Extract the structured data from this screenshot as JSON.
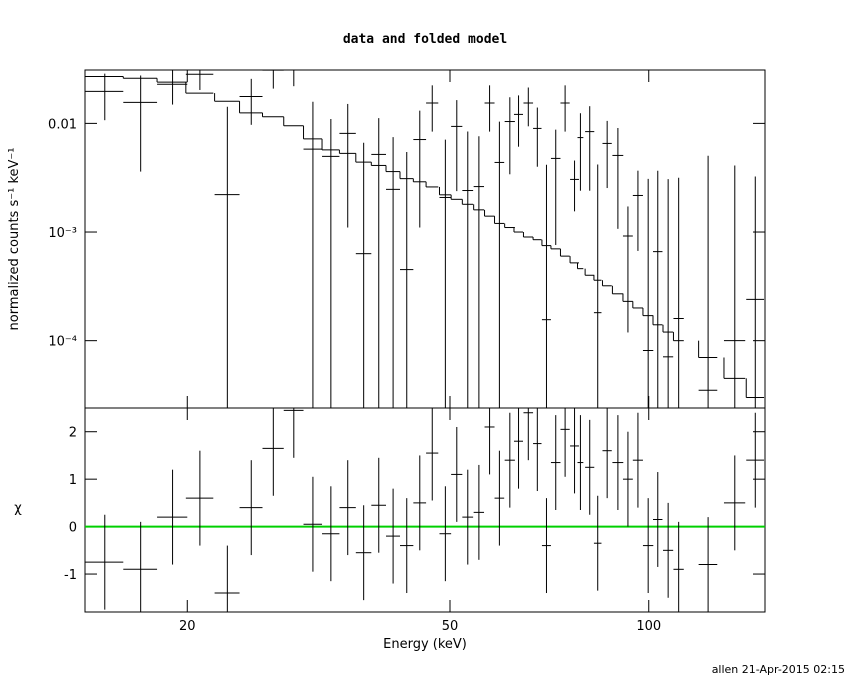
{
  "chart_data": {
    "type": "errorbar",
    "title": "data and folded model",
    "xlabel": "Energy (keV)",
    "ylabel": "normalized counts s⁻¹ keV⁻¹",
    "y2label": "χ",
    "footer": "allen 21-Apr-2015 02:15",
    "xlog": true,
    "ylog": true,
    "xlim": [
      14,
      150
    ],
    "xticks": [
      20,
      50,
      100
    ],
    "ylim": [
      2.4e-05,
      0.031
    ],
    "yticks": [
      {
        "value": 0.01,
        "label": "0.01"
      },
      {
        "value": 0.001,
        "label": "10⁻³"
      },
      {
        "value": 0.0001,
        "label": "10⁻⁴"
      }
    ],
    "y2lim": [
      -1.8,
      2.5
    ],
    "y2ticks": [
      -1,
      0,
      1,
      2
    ],
    "data_color": "#000000",
    "model_color": "#000000",
    "zero_line_color": "#00d000",
    "x": [
      15.0,
      17.0,
      19.0,
      20.9,
      23.0,
      25.0,
      27.0,
      29.0,
      31.0,
      33.0,
      35.0,
      37.0,
      39.0,
      41.0,
      43.0,
      45.0,
      47.0,
      49.2,
      51.2,
      53.2,
      55.3,
      57.4,
      59.4,
      61.6,
      63.5,
      65.7,
      67.8,
      70.0,
      72.3,
      74.7,
      77.2,
      78.8,
      81.4,
      83.7,
      86.5,
      89.8,
      93.0,
      96.3,
      99.8,
      103.2,
      107,
      111,
      123,
      135,
      145
    ],
    "xerr": [
      1.0,
      1.0,
      1.0,
      1.0,
      1.0,
      1.0,
      1.0,
      1.0,
      1.0,
      1.0,
      1.0,
      1.0,
      1.0,
      1.0,
      1.0,
      1.0,
      1.0,
      1.0,
      1.0,
      1.0,
      1.0,
      1.0,
      1.0,
      1.1,
      1.0,
      1.1,
      1.0,
      1.1,
      1.2,
      1.2,
      1.2,
      0.8,
      1.3,
      1.1,
      1.4,
      1.7,
      1.6,
      1.7,
      1.8,
      1.7,
      1.9,
      2.0,
      4,
      5,
      4.5
    ],
    "values": [
      0.0197,
      0.0156,
      0.0229,
      0.0283,
      0.00221,
      0.0177,
      0.0309,
      0.031,
      0.0058,
      0.00497,
      0.0081,
      0.000632,
      0.00518,
      0.00247,
      0.000451,
      0.0071,
      0.0154,
      0.00208,
      0.00938,
      0.00241,
      0.00262,
      0.0154,
      0.00437,
      0.0104,
      0.0121,
      0.0154,
      0.00899,
      0.000156,
      0.00476,
      0.0154,
      0.00305,
      0.0074,
      0.0084,
      0.000181,
      0.00654,
      0.00507,
      0.000919,
      0.00217,
      8.12e-05,
      0.00066,
      7.1e-05,
      0.00016,
      3.5e-05,
      0.0001,
      0.00024
    ],
    "yerr": [
      0.009,
      0.012,
      0.008,
      0.008,
      0.012,
      0.008,
      0.01,
      0.009,
      0.01,
      0.006,
      0.007,
      0.006,
      0.006,
      0.005,
      0.005,
      0.006,
      0.007,
      0.005,
      0.007,
      0.006,
      0.005,
      0.007,
      0.006,
      0.007,
      0.006,
      0.006,
      0.005,
      0.004,
      0.004,
      0.007,
      0.0015,
      0.005,
      0.006,
      0.004,
      0.004,
      0.004,
      0.0008,
      0.0015,
      0.003,
      0.003,
      0.003,
      0.003,
      0.005,
      0.004,
      0.003
    ],
    "model": [
      0.027,
      0.026,
      0.024,
      0.019,
      0.016,
      0.0125,
      0.0115,
      0.0095,
      0.0072,
      0.0057,
      0.0053,
      0.0044,
      0.0041,
      0.0036,
      0.0031,
      0.0029,
      0.0026,
      0.0022,
      0.002,
      0.0018,
      0.0016,
      0.0014,
      0.0012,
      0.0011,
      0.001,
      0.0009,
      0.00085,
      0.00075,
      0.0007,
      0.0006,
      0.00052,
      0.00046,
      0.0004,
      0.00036,
      0.00032,
      0.00027,
      0.00023,
      0.0002,
      0.00017,
      0.00014,
      0.00012,
      0.0001,
      7e-05,
      4.5e-05,
      3e-05
    ],
    "chi": [
      -0.75,
      -0.9,
      0.2,
      0.6,
      -1.4,
      0.4,
      1.65,
      2.45,
      0.05,
      -0.15,
      0.4,
      -0.55,
      0.45,
      -0.2,
      -0.4,
      0.5,
      1.55,
      -0.15,
      1.1,
      0.2,
      0.3,
      2.1,
      0.6,
      1.4,
      1.8,
      2.4,
      1.75,
      -0.4,
      1.35,
      2.05,
      1.7,
      1.35,
      1.25,
      -0.35,
      1.6,
      1.35,
      1.0,
      1.4,
      -0.4,
      0.15,
      -0.5,
      -0.9,
      -0.8,
      0.5,
      1.4
    ],
    "chi_err": 1
  }
}
